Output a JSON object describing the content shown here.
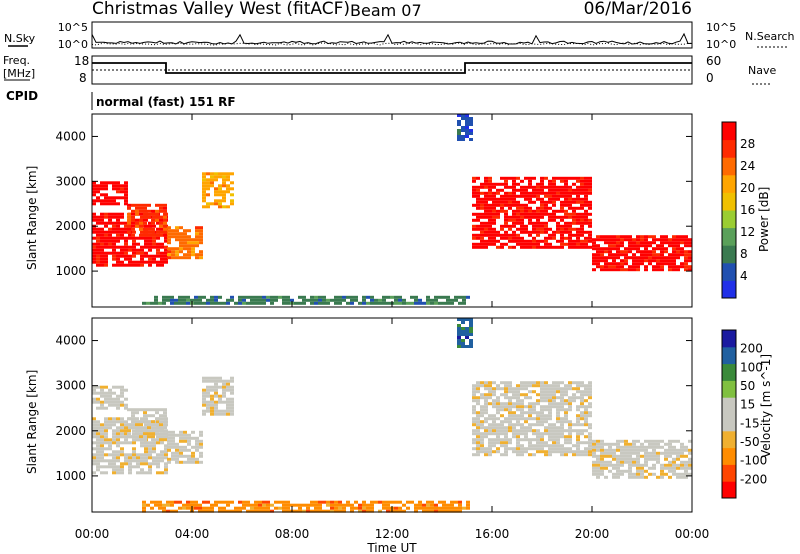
{
  "header": {
    "station": "Christmas Valley West (fitACF)",
    "beam": "Beam 07",
    "date": "06/Mar/2016"
  },
  "noise_panel": {
    "left_label": "N.Sky",
    "right_label": "N.Search",
    "y_ticks": [
      "10^5",
      "10^0"
    ]
  },
  "freq_panel": {
    "left_label_line1": "Freq.",
    "left_label_line2": "[MHz]",
    "left_ticks": [
      "18",
      "8"
    ],
    "right_label": "Nave",
    "right_ticks": [
      "60",
      "0"
    ],
    "cpid_label": "CPID",
    "cpid_value": "normal (fast) 151 RF"
  },
  "colors": {
    "power": [
      "#2030e8",
      "#2050b0",
      "#3a7a50",
      "#5aa05a",
      "#9acd32",
      "#f0c000",
      "#ffa500",
      "#ff6a00",
      "#ff2a00",
      "#ff0000"
    ],
    "velocity": [
      "#ff0000",
      "#ff4500",
      "#ff8c00",
      "#f0b030",
      "#c8c8c0",
      "#c8c8c0",
      "#80c040",
      "#3a8a3a",
      "#2060a0",
      "#1a1aa0"
    ],
    "ground": "#c8c8c0"
  },
  "chart_data": [
    {
      "type": "heatmap",
      "panel": "power",
      "ylabel": "Slant Range [km]",
      "y_ticks": [
        "4000",
        "3000",
        "2000",
        "1000"
      ],
      "ylim": [
        200,
        4500
      ],
      "xlim": [
        0,
        24
      ],
      "colorbar_label": "Power [dB]",
      "colorbar_ticks": [
        "28",
        "24",
        "20",
        "16",
        "12",
        "8",
        "4"
      ],
      "regions": [
        {
          "t": [
            0.0,
            3.0
          ],
          "r": [
            1100,
            2300
          ],
          "level": 9
        },
        {
          "t": [
            0.0,
            1.4
          ],
          "r": [
            2500,
            3000
          ],
          "level": 9
        },
        {
          "t": [
            1.4,
            3.0
          ],
          "r": [
            1800,
            2500
          ],
          "level": 8
        },
        {
          "t": [
            3.0,
            4.4
          ],
          "r": [
            1300,
            2000
          ],
          "level": 7
        },
        {
          "t": [
            4.4,
            5.6
          ],
          "r": [
            2400,
            3200
          ],
          "level": 6
        },
        {
          "t": [
            15.2,
            20.0
          ],
          "r": [
            1500,
            3100
          ],
          "level": 9
        },
        {
          "t": [
            20.0,
            24.0
          ],
          "r": [
            1000,
            1800
          ],
          "level": 9
        },
        {
          "t": [
            2.0,
            15.0
          ],
          "r": [
            250,
            450
          ],
          "level": 2
        },
        {
          "t": [
            14.6,
            15.2
          ],
          "r": [
            3900,
            4500
          ],
          "level": 1
        }
      ]
    },
    {
      "type": "heatmap",
      "panel": "velocity",
      "ylabel": "Slant Range [km]",
      "y_ticks": [
        "4000",
        "3000",
        "2000",
        "1000"
      ],
      "ylim": [
        200,
        4500
      ],
      "xlim": [
        0,
        24
      ],
      "xlabel": "Time UT",
      "x_ticks": [
        "00:00",
        "04:00",
        "08:00",
        "12:00",
        "16:00",
        "20:00",
        "00:00"
      ],
      "colorbar_label": "Velocity [m s^-1]",
      "colorbar_ticks": [
        "200",
        "100",
        "50",
        "15",
        "-15",
        "-50",
        "-100",
        "-200"
      ],
      "regions": [
        {
          "t": [
            0.0,
            3.0
          ],
          "r": [
            1100,
            2300
          ],
          "level": 4
        },
        {
          "t": [
            0.0,
            1.4
          ],
          "r": [
            2500,
            3000
          ],
          "level": 4
        },
        {
          "t": [
            1.4,
            3.0
          ],
          "r": [
            1800,
            2500
          ],
          "level": 4
        },
        {
          "t": [
            3.0,
            4.4
          ],
          "r": [
            1300,
            2000
          ],
          "level": 4
        },
        {
          "t": [
            4.4,
            5.6
          ],
          "r": [
            2400,
            3200
          ],
          "level": 4
        },
        {
          "t": [
            15.2,
            20.0
          ],
          "r": [
            1500,
            3100
          ],
          "level": 4
        },
        {
          "t": [
            20.0,
            24.0
          ],
          "r": [
            1000,
            1800
          ],
          "level": 4
        },
        {
          "t": [
            2.0,
            15.0
          ],
          "r": [
            250,
            450
          ],
          "level": 2
        },
        {
          "t": [
            14.6,
            15.2
          ],
          "r": [
            3900,
            4500
          ],
          "level": 8
        }
      ]
    }
  ]
}
